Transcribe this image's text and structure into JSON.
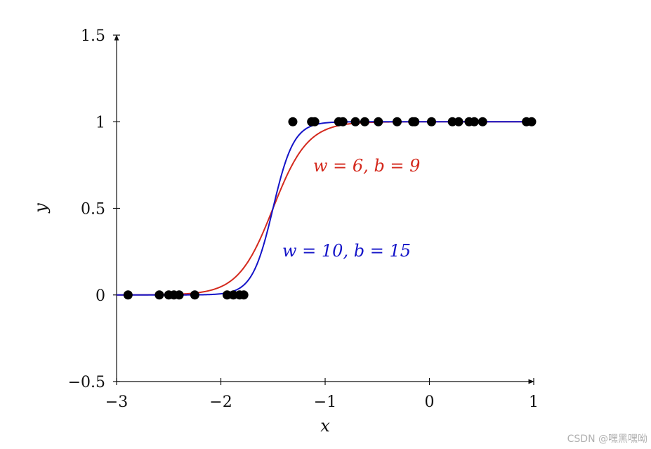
{
  "chart_data": {
    "type": "scatter",
    "xlabel": "x",
    "ylabel": "y",
    "xlim": [
      -3,
      1
    ],
    "ylim": [
      -0.5,
      1.5
    ],
    "x_ticks": [
      -3,
      -2,
      -1,
      0,
      1
    ],
    "x_tick_labels": [
      "−3",
      "−2",
      "−1",
      "0",
      "1"
    ],
    "y_ticks": [
      -0.5,
      0,
      0.5,
      1,
      1.5
    ],
    "y_tick_labels": [
      "−0.5",
      "0",
      "0.5",
      "1",
      "1.5"
    ],
    "grid": false,
    "points": [
      {
        "x": -2.89,
        "y": 0
      },
      {
        "x": -2.59,
        "y": 0
      },
      {
        "x": -2.5,
        "y": 0
      },
      {
        "x": -2.45,
        "y": 0
      },
      {
        "x": -2.4,
        "y": 0
      },
      {
        "x": -2.25,
        "y": 0
      },
      {
        "x": -1.94,
        "y": 0
      },
      {
        "x": -1.88,
        "y": 0
      },
      {
        "x": -1.82,
        "y": 0
      },
      {
        "x": -1.78,
        "y": 0
      },
      {
        "x": -1.31,
        "y": 1
      },
      {
        "x": -1.13,
        "y": 1
      },
      {
        "x": -1.1,
        "y": 1
      },
      {
        "x": -0.87,
        "y": 1
      },
      {
        "x": -0.83,
        "y": 1
      },
      {
        "x": -0.71,
        "y": 1
      },
      {
        "x": -0.62,
        "y": 1
      },
      {
        "x": -0.49,
        "y": 1
      },
      {
        "x": -0.31,
        "y": 1
      },
      {
        "x": -0.16,
        "y": 1
      },
      {
        "x": -0.14,
        "y": 1
      },
      {
        "x": 0.02,
        "y": 1
      },
      {
        "x": 0.22,
        "y": 1
      },
      {
        "x": 0.28,
        "y": 1
      },
      {
        "x": 0.38,
        "y": 1
      },
      {
        "x": 0.43,
        "y": 1
      },
      {
        "x": 0.51,
        "y": 1
      },
      {
        "x": 0.93,
        "y": 1
      },
      {
        "x": 0.98,
        "y": 1
      }
    ],
    "series": [
      {
        "name": "w = 6, b = 9",
        "w": 6,
        "b": 9,
        "color": "#d42a1e"
      },
      {
        "name": "w = 10, b = 15",
        "w": 10,
        "b": 15,
        "color": "#1414c8"
      }
    ],
    "point_color": "#000000"
  },
  "watermark": "CSDN @嘿黑嘿呦"
}
